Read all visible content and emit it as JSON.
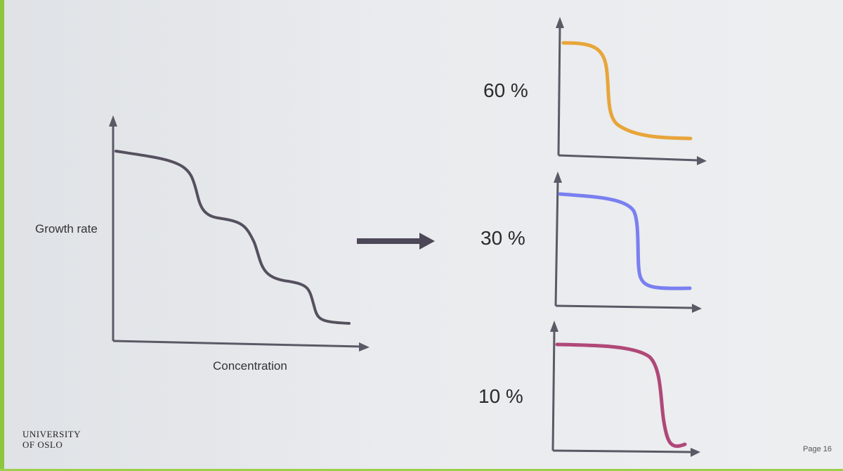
{
  "labels": {
    "ylabel": "Growth rate",
    "xlabel": "Concentration",
    "panel_top": "60 %",
    "panel_middle": "30 %",
    "panel_bottom": "10 %"
  },
  "footer": {
    "university_line1": "UNIVERSITY",
    "university_line2": "OF OSLO",
    "page": "Page 16"
  },
  "colors": {
    "axis": "#5a5a66",
    "main_curve": "#55505e",
    "arrow": "#4d4858",
    "curve_60": "#e8a53a",
    "curve_30": "#7a7ff0",
    "curve_10": "#b04878"
  }
}
